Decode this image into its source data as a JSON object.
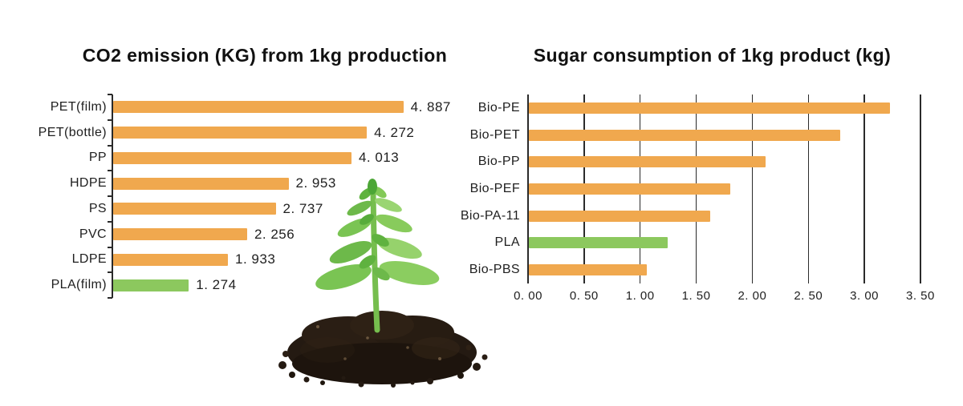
{
  "colors": {
    "bar_orange": "#F0A84E",
    "bar_green": "#8CC85E",
    "axis": "#2a2a2a",
    "text": "#1f1f1f",
    "background": "#ffffff"
  },
  "chart_data": [
    {
      "id": "co2",
      "type": "bar",
      "orientation": "horizontal",
      "title": "CO2 emission (KG) from 1kg production",
      "categories": [
        "PET(film)",
        "PET(bottle)",
        "PP",
        "HDPE",
        "PS",
        "PVC",
        "LDPE",
        "PLA(film)"
      ],
      "values": [
        4.887,
        4.272,
        4.013,
        2.953,
        2.737,
        2.256,
        1.933,
        1.274
      ],
      "value_labels": [
        "4. 887",
        "4. 272",
        "4. 013",
        "2. 953",
        "2. 737",
        "2. 256",
        "1. 933",
        "1. 274"
      ],
      "highlight_category": "PLA(film)",
      "xlim": [
        0,
        5
      ],
      "gridlines": false,
      "data_labels": true,
      "legend": "none"
    },
    {
      "id": "sugar",
      "type": "bar",
      "orientation": "horizontal",
      "title": "Sugar consumption of 1kg product (kg)",
      "categories": [
        "Bio-PE",
        "Bio-PET",
        "Bio-PP",
        "Bio-PEF",
        "Bio-PA-11",
        "PLA",
        "Bio-PBS"
      ],
      "values": [
        3.22,
        2.78,
        2.11,
        1.8,
        1.62,
        1.24,
        1.05
      ],
      "highlight_category": "PLA",
      "xlim": [
        0,
        3.5
      ],
      "ticks": [
        0,
        0.5,
        1,
        1.5,
        2,
        2.5,
        3,
        3.5
      ],
      "tick_labels": [
        "0. 00",
        "0. 50",
        "1. 00",
        "1. 50",
        "2. 00",
        "2. 50",
        "3. 00",
        "3. 50"
      ],
      "gridlines": true,
      "data_labels": false,
      "legend": "none"
    }
  ],
  "illustration": {
    "alt": "Green seedling growing out of a mound of dark soil"
  }
}
